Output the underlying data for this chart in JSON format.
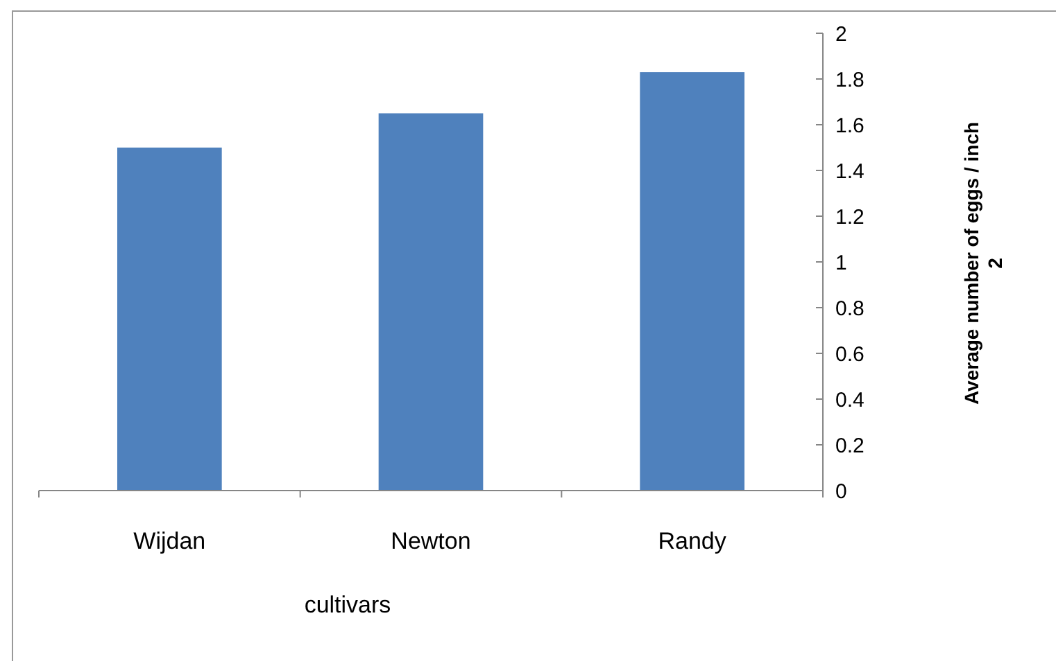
{
  "chart_data": {
    "type": "bar",
    "xlabel": "cultivars",
    "ylabel": "Average number of eggs / inch 2",
    "categories": [
      "Wijdan",
      "Newton",
      "Randy"
    ],
    "values": [
      1.5,
      1.65,
      1.83
    ],
    "color": "#4f81bd",
    "ylim": [
      0,
      2
    ],
    "yticks": [
      0,
      0.2,
      0.4,
      0.6,
      0.8,
      1,
      1.2,
      1.4,
      1.6,
      1.8,
      2
    ],
    "grid": false
  }
}
